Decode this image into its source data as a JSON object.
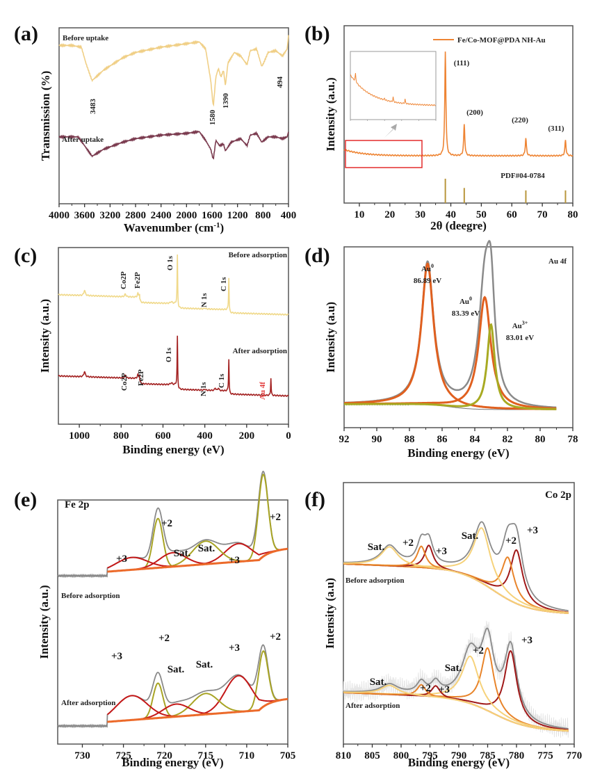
{
  "figure": {
    "panel_labels": [
      "(a)",
      "(b)",
      "(c)",
      "(d)",
      "(e)",
      "(f)"
    ]
  },
  "chart_data": [
    {
      "id": "a",
      "type": "line",
      "title": "",
      "xlabel": "Wavenumber (cm-1)",
      "xlabel_main": "Wavenumber (cm",
      "xlabel_sup": "-1",
      "xlabel_end": ")",
      "ylabel": "Transmission (%)",
      "xlim": [
        4000,
        400
      ],
      "xticks": [
        4000,
        3600,
        3200,
        2800,
        2400,
        2000,
        1600,
        1200,
        800,
        400
      ],
      "series": [
        {
          "name": "Before uptake",
          "color": "#f0cf86",
          "x": [
            4000,
            3800,
            3650,
            3580,
            3483,
            3300,
            3000,
            2800,
            2400,
            2000,
            1800,
            1700,
            1620,
            1580,
            1540,
            1500,
            1460,
            1420,
            1390,
            1350,
            1250,
            1150,
            1050,
            1000,
            900,
            820,
            790,
            720,
            600,
            494,
            420,
            400
          ],
          "y": [
            0.9,
            0.9,
            0.89,
            0.8,
            0.7,
            0.76,
            0.83,
            0.86,
            0.89,
            0.91,
            0.92,
            0.88,
            0.7,
            0.55,
            0.72,
            0.77,
            0.72,
            0.76,
            0.67,
            0.8,
            0.86,
            0.84,
            0.79,
            0.87,
            0.88,
            0.78,
            0.8,
            0.86,
            0.87,
            0.84,
            0.88,
            0.96
          ]
        },
        {
          "name": "After uptake",
          "color": "#7a3a4e",
          "x": [
            4000,
            3700,
            3600,
            3483,
            3300,
            3000,
            2800,
            2400,
            2000,
            1800,
            1700,
            1620,
            1580,
            1540,
            1480,
            1420,
            1390,
            1300,
            1150,
            1050,
            1000,
            900,
            820,
            720,
            600,
            494,
            420,
            400
          ],
          "y": [
            0.38,
            0.38,
            0.33,
            0.27,
            0.31,
            0.35,
            0.37,
            0.39,
            0.4,
            0.41,
            0.36,
            0.31,
            0.25,
            0.36,
            0.33,
            0.34,
            0.3,
            0.35,
            0.37,
            0.33,
            0.39,
            0.4,
            0.35,
            0.38,
            0.38,
            0.37,
            0.38,
            0.41
          ]
        }
      ],
      "series_labels": [
        "Before uptake",
        "After uptake"
      ],
      "peak_labels": [
        "3483",
        "1580",
        "1390",
        "494"
      ],
      "peak_positions": [
        3483,
        1580,
        1390,
        494
      ]
    },
    {
      "id": "b",
      "type": "line",
      "xlabel": "2θ (deegre)",
      "ylabel": "Intensity (a.u.)",
      "xlim": [
        5,
        80
      ],
      "xticks": [
        10,
        20,
        30,
        40,
        50,
        60,
        70,
        80
      ],
      "legend": "Fe/Co-MOF@PDA NH-Au",
      "legend_position": "top-right",
      "series_color": "#ee8433",
      "peaks": [
        {
          "label": "(111)",
          "two_theta": 38.2,
          "height": 1.0
        },
        {
          "label": "(200)",
          "two_theta": 44.4,
          "height": 0.3
        },
        {
          "label": "(220)",
          "two_theta": 64.6,
          "height": 0.17
        },
        {
          "label": "(311)",
          "two_theta": 77.6,
          "height": 0.15
        }
      ],
      "reference": {
        "label": "PDF#04-0784",
        "color": "#b8963c",
        "positions": [
          38.2,
          44.4,
          64.6,
          77.6
        ],
        "heights": [
          1.0,
          0.62,
          0.52,
          0.52
        ]
      },
      "inset": {
        "range": [
          5,
          30
        ],
        "zoom_box_color": "#e32b2b",
        "arrow_color": "#a9a9a9"
      }
    },
    {
      "id": "c",
      "type": "line",
      "xlabel": "Binding energy (eV)",
      "ylabel": "Intensity (a.u.)",
      "xlim": [
        1100,
        0
      ],
      "xticks": [
        1000,
        800,
        600,
        400,
        200,
        0
      ],
      "series": [
        {
          "name": "Before adsorption",
          "color": "#f0d98a"
        },
        {
          "name": "After adsorption",
          "color": "#a32121"
        }
      ],
      "peak_labels_before": [
        {
          "label": "Co2P",
          "be": 780
        },
        {
          "label": "Fe2P",
          "be": 711
        },
        {
          "label": "O 1s",
          "be": 531
        },
        {
          "label": "N 1s",
          "be": 400
        },
        {
          "label": "C 1s",
          "be": 285
        }
      ],
      "peak_labels_after": [
        {
          "label": "Co2P",
          "be": 780
        },
        {
          "label": "Fe2P",
          "be": 711
        },
        {
          "label": "O 1s",
          "be": 531
        },
        {
          "label": "N 1s",
          "be": 400
        },
        {
          "label": "C 1s",
          "be": 285
        },
        {
          "label": "Au 4f",
          "be": 84,
          "color": "#e23a3a"
        }
      ]
    },
    {
      "id": "d",
      "type": "line",
      "title": "Au 4f",
      "xlabel": "Binding energy (eV)",
      "ylabel": "Intensity (a.u)",
      "xlim": [
        92,
        78
      ],
      "xticks": [
        92,
        90,
        88,
        86,
        84,
        82,
        80,
        78
      ],
      "components": [
        {
          "name": "Au0",
          "species": "Au",
          "sup": "0",
          "be": 86.89,
          "label": "86.89 eV",
          "color": "#e0601f",
          "height": 0.78
        },
        {
          "name": "Au0",
          "species": "Au",
          "sup": "0",
          "be": 83.39,
          "label": "83.39 eV",
          "color": "#e0601f",
          "height": 0.62
        },
        {
          "name": "Au3+",
          "species": "Au",
          "sup": "3+",
          "be": 83.01,
          "label": "83.01 eV",
          "color": "#a8aa22",
          "height": 0.47
        }
      ],
      "envelope_color": "#8a8a8a"
    },
    {
      "id": "e",
      "type": "line",
      "title": "Fe 2p",
      "xlabel": "Binding energy (eV)",
      "ylabel": "Intensity (a.u.)",
      "xlim": [
        733,
        705
      ],
      "xticks": [
        730,
        725,
        720,
        715,
        710,
        705
      ],
      "spectra": [
        {
          "name": "Before adsorption",
          "components": [
            {
              "label": "+2",
              "be": 708.0,
              "height": 1.0,
              "color": "#a8a424"
            },
            {
              "label": "+3",
              "be": 711.0,
              "height": 0.22,
              "color": "#c41818"
            },
            {
              "label": "Sat.",
              "be": 715.0,
              "height": 0.28,
              "color": "#a8a424"
            },
            {
              "label": "+2",
              "be": 720.8,
              "height": 0.6,
              "color": "#a8a424"
            },
            {
              "label": "Sat.",
              "be": 719.0,
              "height": 0.17,
              "color": "#c41818"
            },
            {
              "label": "+3",
              "be": 724.0,
              "height": 0.15,
              "color": "#c41818"
            }
          ]
        },
        {
          "name": "After adsorption",
          "components": [
            {
              "label": "+2",
              "be": 708.0,
              "height": 0.8,
              "color": "#a8a424"
            },
            {
              "label": "+3",
              "be": 711.0,
              "height": 0.52,
              "color": "#c41818"
            },
            {
              "label": "Sat.",
              "be": 715.0,
              "height": 0.3,
              "color": "#a8a424"
            },
            {
              "label": "+2",
              "be": 720.8,
              "height": 0.5,
              "color": "#a8a424"
            },
            {
              "label": "Sat.",
              "be": 718.6,
              "height": 0.18,
              "color": "#c41818"
            },
            {
              "label": "+3",
              "be": 724.0,
              "height": 0.35,
              "color": "#c41818"
            }
          ]
        }
      ],
      "background_color": "#ec6a2a",
      "envelope_color": "#8a8a8a"
    },
    {
      "id": "f",
      "type": "line",
      "title": "Co 2p",
      "xlabel": "Binding energy (eV)",
      "ylabel": "Intensity (a.u)",
      "xlim": [
        810,
        770
      ],
      "xticks": [
        810,
        805,
        800,
        795,
        790,
        785,
        780,
        775,
        770
      ],
      "spectra": [
        {
          "name": "Before adsorption",
          "components": [
            {
              "label": "+3",
              "be": 780.0,
              "height": 0.7,
              "color": "#a01818"
            },
            {
              "label": "+2",
              "be": 781.5,
              "height": 0.55,
              "color": "#e8842a"
            },
            {
              "label": "Sat.",
              "be": 786.0,
              "height": 0.72,
              "color": "#f6d27a"
            },
            {
              "label": "+3",
              "be": 795.2,
              "height": 0.3,
              "color": "#a01818"
            },
            {
              "label": "+2",
              "be": 796.5,
              "height": 0.28,
              "color": "#e8842a"
            },
            {
              "label": "Sat.",
              "be": 802.0,
              "height": 0.25,
              "color": "#f6d27a"
            }
          ]
        },
        {
          "name": "After adsorption",
          "components": [
            {
              "label": "+3",
              "be": 781.0,
              "height": 0.92,
              "color": "#a01818"
            },
            {
              "label": "+2",
              "be": 785.0,
              "height": 0.82,
              "color": "#e8842a"
            },
            {
              "label": "Sat.",
              "be": 788.0,
              "height": 0.62,
              "color": "#f6d27a"
            },
            {
              "label": "+3",
              "be": 794.0,
              "height": 0.15,
              "color": "#a01818"
            },
            {
              "label": "+2",
              "be": 796.5,
              "height": 0.15,
              "color": "#e8842a"
            },
            {
              "label": "Sat.",
              "be": 802.0,
              "height": 0.12,
              "color": "#f6d27a"
            }
          ]
        }
      ],
      "envelope_color": "#8a8a8a"
    }
  ]
}
